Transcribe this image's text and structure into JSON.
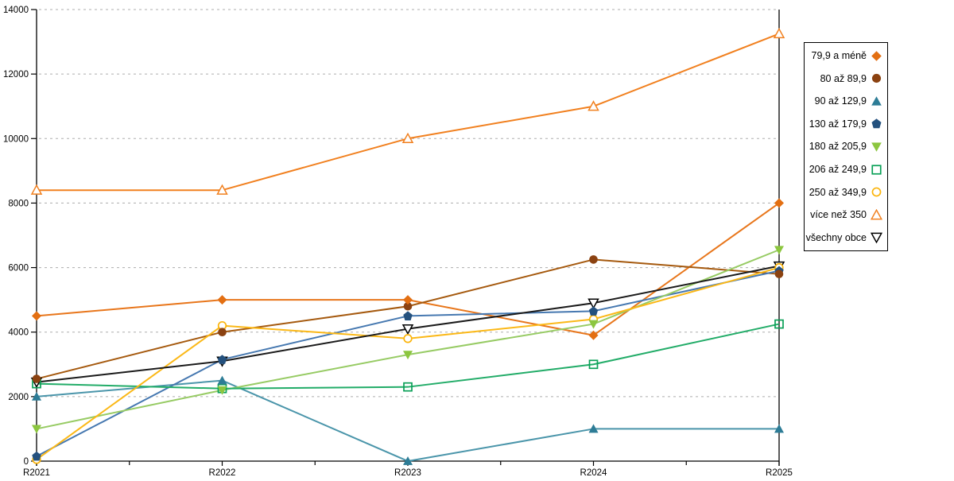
{
  "chart_data": {
    "type": "line",
    "title": "",
    "xlabel": "",
    "ylabel": "",
    "categories": [
      "R2021",
      "R2022",
      "R2023",
      "R2024",
      "R2025"
    ],
    "y_axis": {
      "min": 0,
      "max": 14000,
      "tick_step": 2000,
      "tick_labels": [
        "0",
        "2000",
        "4000",
        "6000",
        "8000",
        "10000",
        "12000",
        "14000"
      ]
    },
    "grid": "horizontal-dashed",
    "legend_position": "right",
    "series": [
      {
        "name": "79,9 a méně",
        "marker": "diamond-filled",
        "line_color": "#E8761B",
        "marker_color": "#E36F12",
        "values": [
          4500,
          5000,
          5000,
          3900,
          8000
        ]
      },
      {
        "name": "80 až 89,9",
        "marker": "circle-filled",
        "line_color": "#A5590E",
        "marker_color": "#8B4211",
        "values": [
          2550,
          4000,
          4800,
          6250,
          5800
        ]
      },
      {
        "name": "90 až 129,9",
        "marker": "triangle-up-filled",
        "line_color": "#4A95AA",
        "marker_color": "#2D7C96",
        "values": [
          2000,
          2500,
          0,
          1000,
          1000
        ]
      },
      {
        "name": "130 až 179,9",
        "marker": "pentagon-filled",
        "line_color": "#4678B0",
        "marker_color": "#24517E",
        "values": [
          150,
          3150,
          4500,
          4650,
          5900
        ]
      },
      {
        "name": "180 až 205,9",
        "marker": "triangle-down-filled",
        "line_color": "#97CB64",
        "marker_color": "#8CC63F",
        "values": [
          1000,
          2200,
          3300,
          4250,
          6550
        ]
      },
      {
        "name": "206 až 249,9",
        "marker": "square-open",
        "line_color": "#22AC68",
        "marker_color": "#0AA057",
        "values": [
          2400,
          2250,
          2300,
          3000,
          4250
        ]
      },
      {
        "name": "250 až 349,9",
        "marker": "circle-open",
        "line_color": "#FBB817",
        "marker_color": "#FBB40B",
        "values": [
          50,
          4200,
          3800,
          4400,
          6000
        ]
      },
      {
        "name": "více než 350",
        "marker": "triangle-up-open",
        "line_color": "#F1801F",
        "marker_color": "#F1801F",
        "values": [
          8400,
          8400,
          10000,
          11000,
          13250
        ]
      },
      {
        "name": "všechny obce",
        "marker": "triangle-down-open",
        "line_color": "#1A1A1A",
        "marker_color": "#000000",
        "values": [
          2450,
          3100,
          4100,
          4900,
          6050
        ]
      }
    ],
    "colors": {
      "gridline": "#ADADAD",
      "axis": "#000000",
      "background": "#FFFFFF"
    }
  }
}
